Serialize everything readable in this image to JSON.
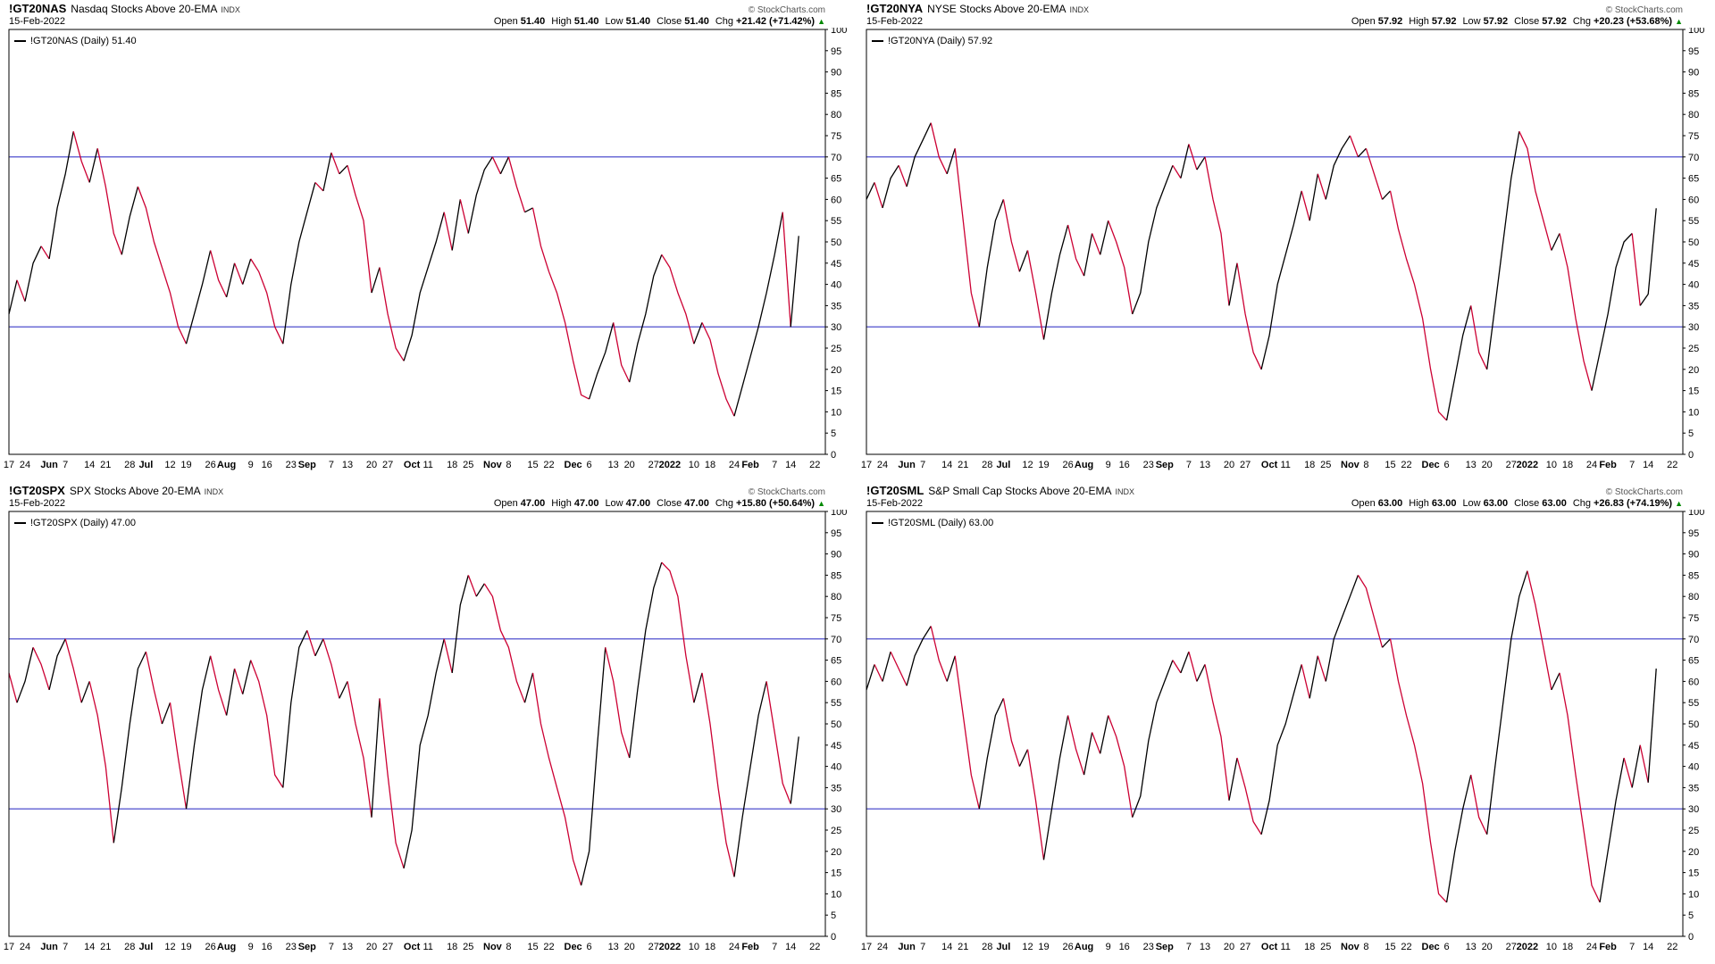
{
  "watermark": "© StockCharts.com",
  "labels": {
    "open": "Open",
    "high": "High",
    "low": "Low",
    "close": "Close",
    "chg": "Chg",
    "up_arrow": "▲"
  },
  "style": {
    "up_color": "#000000",
    "down_color": "#cc0033",
    "hline_color": "#3a3ac8",
    "border_color": "#000000",
    "axis_text_color": "#000000"
  },
  "y_axis": {
    "min": 0,
    "max": 100,
    "step": 5,
    "hlines": [
      70,
      30
    ]
  },
  "x_axis": {
    "points_per_week": 2.5,
    "domain": 101.3,
    "labels": [
      {
        "t": "17",
        "b": 0
      },
      {
        "t": "24",
        "b": 0
      },
      {
        "t": "Jun",
        "b": 1
      },
      {
        "t": "7",
        "b": 0
      },
      {
        "t": "14",
        "b": 0
      },
      {
        "t": "21",
        "b": 0
      },
      {
        "t": "28",
        "b": 0
      },
      {
        "t": "Jul",
        "b": 1
      },
      {
        "t": "12",
        "b": 0
      },
      {
        "t": "19",
        "b": 0
      },
      {
        "t": "26",
        "b": 0
      },
      {
        "t": "Aug",
        "b": 1
      },
      {
        "t": "9",
        "b": 0
      },
      {
        "t": "16",
        "b": 0
      },
      {
        "t": "23",
        "b": 0
      },
      {
        "t": "Sep",
        "b": 1
      },
      {
        "t": "7",
        "b": 0
      },
      {
        "t": "13",
        "b": 0
      },
      {
        "t": "20",
        "b": 0
      },
      {
        "t": "27",
        "b": 0
      },
      {
        "t": "Oct",
        "b": 1
      },
      {
        "t": "11",
        "b": 0
      },
      {
        "t": "18",
        "b": 0
      },
      {
        "t": "25",
        "b": 0
      },
      {
        "t": "Nov",
        "b": 1
      },
      {
        "t": "8",
        "b": 0
      },
      {
        "t": "15",
        "b": 0
      },
      {
        "t": "22",
        "b": 0
      },
      {
        "t": "Dec",
        "b": 1
      },
      {
        "t": "6",
        "b": 0
      },
      {
        "t": "13",
        "b": 0
      },
      {
        "t": "20",
        "b": 0
      },
      {
        "t": "27",
        "b": 0
      },
      {
        "t": "2022",
        "b": 1
      },
      {
        "t": "10",
        "b": 0
      },
      {
        "t": "18",
        "b": 0
      },
      {
        "t": "24",
        "b": 0
      },
      {
        "t": "Feb",
        "b": 1
      },
      {
        "t": "7",
        "b": 0
      },
      {
        "t": "14",
        "b": 0
      },
      {
        "t": "22",
        "b": 0
      }
    ]
  },
  "chart_data": [
    {
      "type": "line",
      "symbol": "!GT20NAS",
      "title": "Nasdaq Stocks Above 20-EMA",
      "exchange": "INDX",
      "date": "15-Feb-2022",
      "legend": "!GT20NAS (Daily) 51.40",
      "ohlc": {
        "open": "51.40",
        "high": "51.40",
        "low": "51.40",
        "close": "51.40",
        "chg": "+21.42 (+71.42%)"
      },
      "ylim": [
        0,
        100
      ],
      "values": [
        33,
        41,
        36,
        45,
        49,
        46,
        58,
        66,
        76,
        69,
        64,
        72,
        63,
        52,
        47,
        56,
        63,
        58,
        50,
        44,
        38,
        30,
        26,
        33,
        40,
        48,
        41,
        37,
        45,
        40,
        46,
        43,
        38,
        30,
        26,
        40,
        50,
        57,
        64,
        62,
        71,
        66,
        68,
        61,
        55,
        38,
        44,
        33,
        25,
        22,
        28,
        38,
        44,
        50,
        57,
        48,
        60,
        52,
        61,
        67,
        70,
        66,
        70,
        63,
        57,
        58,
        49,
        43,
        38,
        31,
        22,
        14,
        13,
        19,
        24,
        31,
        21,
        17,
        26,
        33,
        42,
        47,
        44,
        38,
        33,
        26,
        31,
        27,
        19,
        13,
        9,
        16,
        23,
        30,
        38,
        47,
        57,
        30,
        51.4
      ]
    },
    {
      "type": "line",
      "symbol": "!GT20NYA",
      "title": "NYSE Stocks Above 20-EMA",
      "exchange": "INDX",
      "date": "15-Feb-2022",
      "legend": "!GT20NYA (Daily) 57.92",
      "ohlc": {
        "open": "57.92",
        "high": "57.92",
        "low": "57.92",
        "close": "57.92",
        "chg": "+20.23 (+53.68%)"
      },
      "ylim": [
        0,
        100
      ],
      "values": [
        60,
        64,
        58,
        65,
        68,
        63,
        70,
        74,
        78,
        70,
        66,
        72,
        55,
        38,
        30,
        44,
        55,
        60,
        50,
        43,
        48,
        38,
        27,
        38,
        47,
        54,
        46,
        42,
        52,
        47,
        55,
        50,
        44,
        33,
        38,
        50,
        58,
        63,
        68,
        65,
        73,
        67,
        70,
        60,
        52,
        35,
        45,
        33,
        24,
        20,
        28,
        40,
        47,
        54,
        62,
        55,
        66,
        60,
        68,
        72,
        75,
        70,
        72,
        66,
        60,
        62,
        53,
        46,
        40,
        32,
        20,
        10,
        8,
        18,
        28,
        35,
        24,
        20,
        35,
        50,
        65,
        76,
        72,
        62,
        55,
        48,
        52,
        44,
        32,
        22,
        15,
        24,
        33,
        44,
        50,
        52,
        35,
        37.7,
        57.92
      ]
    },
    {
      "type": "line",
      "symbol": "!GT20SPX",
      "title": "SPX Stocks Above 20-EMA",
      "exchange": "INDX",
      "date": "15-Feb-2022",
      "legend": "!GT20SPX (Daily) 47.00",
      "ohlc": {
        "open": "47.00",
        "high": "47.00",
        "low": "47.00",
        "close": "47.00",
        "chg": "+15.80 (+50.64%)"
      },
      "ylim": [
        0,
        100
      ],
      "values": [
        62,
        55,
        60,
        68,
        64,
        58,
        66,
        70,
        63,
        55,
        60,
        52,
        40,
        22,
        35,
        50,
        63,
        67,
        58,
        50,
        55,
        42,
        30,
        45,
        58,
        66,
        58,
        52,
        63,
        57,
        65,
        60,
        52,
        38,
        35,
        55,
        68,
        72,
        66,
        70,
        64,
        56,
        60,
        50,
        42,
        28,
        56,
        38,
        22,
        16,
        25,
        45,
        52,
        62,
        70,
        62,
        78,
        85,
        80,
        83,
        80,
        72,
        68,
        60,
        55,
        62,
        50,
        42,
        35,
        28,
        18,
        12,
        20,
        45,
        68,
        60,
        48,
        42,
        58,
        72,
        82,
        88,
        86,
        80,
        66,
        55,
        62,
        50,
        35,
        22,
        14,
        28,
        40,
        52,
        60,
        48,
        36,
        31.2,
        47
      ]
    },
    {
      "type": "line",
      "symbol": "!GT20SML",
      "title": "S&P Small Cap Stocks Above 20-EMA",
      "exchange": "INDX",
      "date": "15-Feb-2022",
      "legend": "!GT20SML (Daily) 63.00",
      "ohlc": {
        "open": "63.00",
        "high": "63.00",
        "low": "63.00",
        "close": "63.00",
        "chg": "+26.83 (+74.19%)"
      },
      "ylim": [
        0,
        100
      ],
      "values": [
        58,
        64,
        60,
        67,
        63,
        59,
        66,
        70,
        73,
        65,
        60,
        66,
        52,
        38,
        30,
        42,
        52,
        56,
        46,
        40,
        44,
        32,
        18,
        30,
        42,
        52,
        44,
        38,
        48,
        43,
        52,
        47,
        40,
        28,
        33,
        46,
        55,
        60,
        65,
        62,
        67,
        60,
        64,
        55,
        47,
        32,
        42,
        35,
        27,
        24,
        32,
        45,
        50,
        57,
        64,
        56,
        66,
        60,
        70,
        75,
        80,
        85,
        82,
        75,
        68,
        70,
        60,
        52,
        45,
        36,
        22,
        10,
        8,
        20,
        30,
        38,
        28,
        24,
        40,
        55,
        70,
        80,
        86,
        78,
        68,
        58,
        62,
        52,
        38,
        25,
        12,
        8,
        20,
        32,
        42,
        35,
        45,
        36.2,
        63
      ]
    }
  ]
}
